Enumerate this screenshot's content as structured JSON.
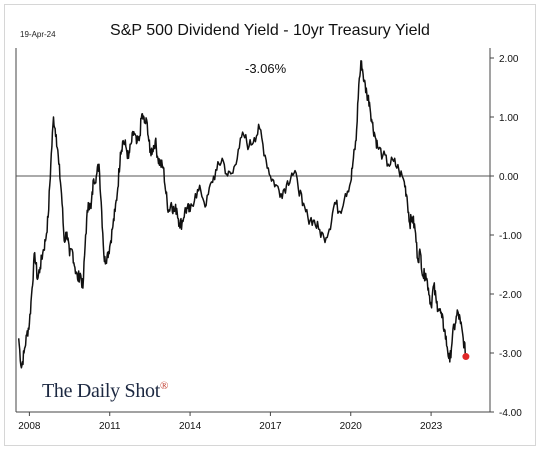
{
  "header": {
    "date": "19-Apr-24",
    "title": "S&P 500 Dividend Yield - 10yr Treasury Yield",
    "annotation": "-3.06%"
  },
  "branding": {
    "logo_text": "The Daily Shot",
    "logo_mark": "®"
  },
  "colors": {
    "line": "#111111",
    "zero_line": "#555555",
    "last_point": "#e02828"
  },
  "chart_data": {
    "type": "line",
    "title": "S&P 500 Dividend Yield - 10yr Treasury Yield",
    "xlabel": "",
    "ylabel": "",
    "x_ticks": [
      "2008",
      "2011",
      "2014",
      "2017",
      "2020",
      "2023"
    ],
    "y_ticks": [
      "2.00",
      "1.00",
      "0.00",
      "-1.00",
      "-2.00",
      "-3.00",
      "-4.00"
    ],
    "xlim": [
      2007.5,
      2025.2
    ],
    "ylim": [
      -4,
      2
    ],
    "y_axis_side": "right",
    "grid": false,
    "reference_line": 0,
    "last_value": -3.06,
    "series": [
      {
        "x": [
          2007.6,
          2007.7,
          2007.8,
          2007.9,
          2008.0,
          2008.1,
          2008.2,
          2008.3,
          2008.4,
          2008.5,
          2008.6,
          2008.7,
          2008.8,
          2008.9,
          2009.0,
          2009.1,
          2009.2,
          2009.3,
          2009.4,
          2009.5,
          2009.6,
          2009.7,
          2009.8,
          2009.9,
          2010.0,
          2010.1,
          2010.2,
          2010.3,
          2010.4,
          2010.5,
          2010.6,
          2010.7,
          2010.8,
          2010.9,
          2011.0,
          2011.1,
          2011.2,
          2011.3,
          2011.4,
          2011.5,
          2011.6,
          2011.7,
          2011.8,
          2011.9,
          2012.0,
          2012.1,
          2012.2,
          2012.3,
          2012.4,
          2012.5,
          2012.6,
          2012.7,
          2012.8,
          2012.9,
          2013.0,
          2013.1,
          2013.2,
          2013.3,
          2013.4,
          2013.5,
          2013.6,
          2013.7,
          2013.8,
          2013.9,
          2014.0,
          2014.2,
          2014.4,
          2014.6,
          2014.8,
          2015.0,
          2015.2,
          2015.4,
          2015.6,
          2015.8,
          2016.0,
          2016.2,
          2016.4,
          2016.6,
          2016.8,
          2017.0,
          2017.2,
          2017.4,
          2017.6,
          2017.8,
          2018.0,
          2018.2,
          2018.4,
          2018.6,
          2018.8,
          2019.0,
          2019.2,
          2019.4,
          2019.6,
          2019.8,
          2020.0,
          2020.1,
          2020.2,
          2020.3,
          2020.4,
          2020.5,
          2020.6,
          2020.7,
          2020.8,
          2020.9,
          2021.0,
          2021.2,
          2021.4,
          2021.6,
          2021.8,
          2022.0,
          2022.1,
          2022.2,
          2022.3,
          2022.4,
          2022.5,
          2022.6,
          2022.7,
          2022.8,
          2022.9,
          2023.0,
          2023.1,
          2023.2,
          2023.3,
          2023.4,
          2023.5,
          2023.6,
          2023.7,
          2023.8,
          2023.9,
          2024.0,
          2024.1,
          2024.2,
          2024.3
        ],
        "y": [
          -2.75,
          -3.25,
          -3.0,
          -2.7,
          -2.5,
          -1.9,
          -1.3,
          -1.75,
          -1.55,
          -1.3,
          -1.1,
          -0.7,
          0.2,
          1.0,
          0.7,
          0.2,
          -0.3,
          -1.1,
          -0.95,
          -1.35,
          -1.25,
          -1.55,
          -1.75,
          -1.65,
          -1.9,
          -1.0,
          -0.45,
          -0.55,
          -0.05,
          0.0,
          0.2,
          -0.6,
          -1.45,
          -1.35,
          -1.2,
          -0.9,
          -0.6,
          -0.2,
          0.4,
          0.6,
          0.5,
          0.3,
          0.55,
          0.75,
          0.55,
          0.6,
          1.05,
          0.9,
          0.9,
          0.4,
          0.45,
          0.6,
          0.3,
          0.2,
          0.15,
          -0.3,
          -0.6,
          -0.45,
          -0.6,
          -0.55,
          -0.8,
          -0.8,
          -0.6,
          -0.55,
          -0.6,
          -0.3,
          -0.25,
          -0.5,
          -0.1,
          0.1,
          0.3,
          0.0,
          0.05,
          0.45,
          0.7,
          0.5,
          0.65,
          0.8,
          0.35,
          0.0,
          -0.15,
          -0.3,
          -0.15,
          0.05,
          -0.05,
          -0.5,
          -0.7,
          -0.75,
          -0.9,
          -1.05,
          -0.9,
          -0.45,
          -0.6,
          -0.3,
          -0.1,
          0.3,
          0.6,
          1.55,
          1.95,
          1.6,
          1.4,
          1.25,
          0.9,
          0.7,
          0.5,
          0.35,
          0.2,
          0.25,
          0.1,
          -0.1,
          -0.35,
          -0.8,
          -0.7,
          -0.9,
          -1.4,
          -1.3,
          -1.7,
          -1.65,
          -1.9,
          -2.2,
          -1.85,
          -2.15,
          -2.25,
          -2.4,
          -2.6,
          -2.9,
          -3.15,
          -2.7,
          -2.5,
          -2.3,
          -2.5,
          -2.75,
          -3.06
        ]
      }
    ]
  }
}
